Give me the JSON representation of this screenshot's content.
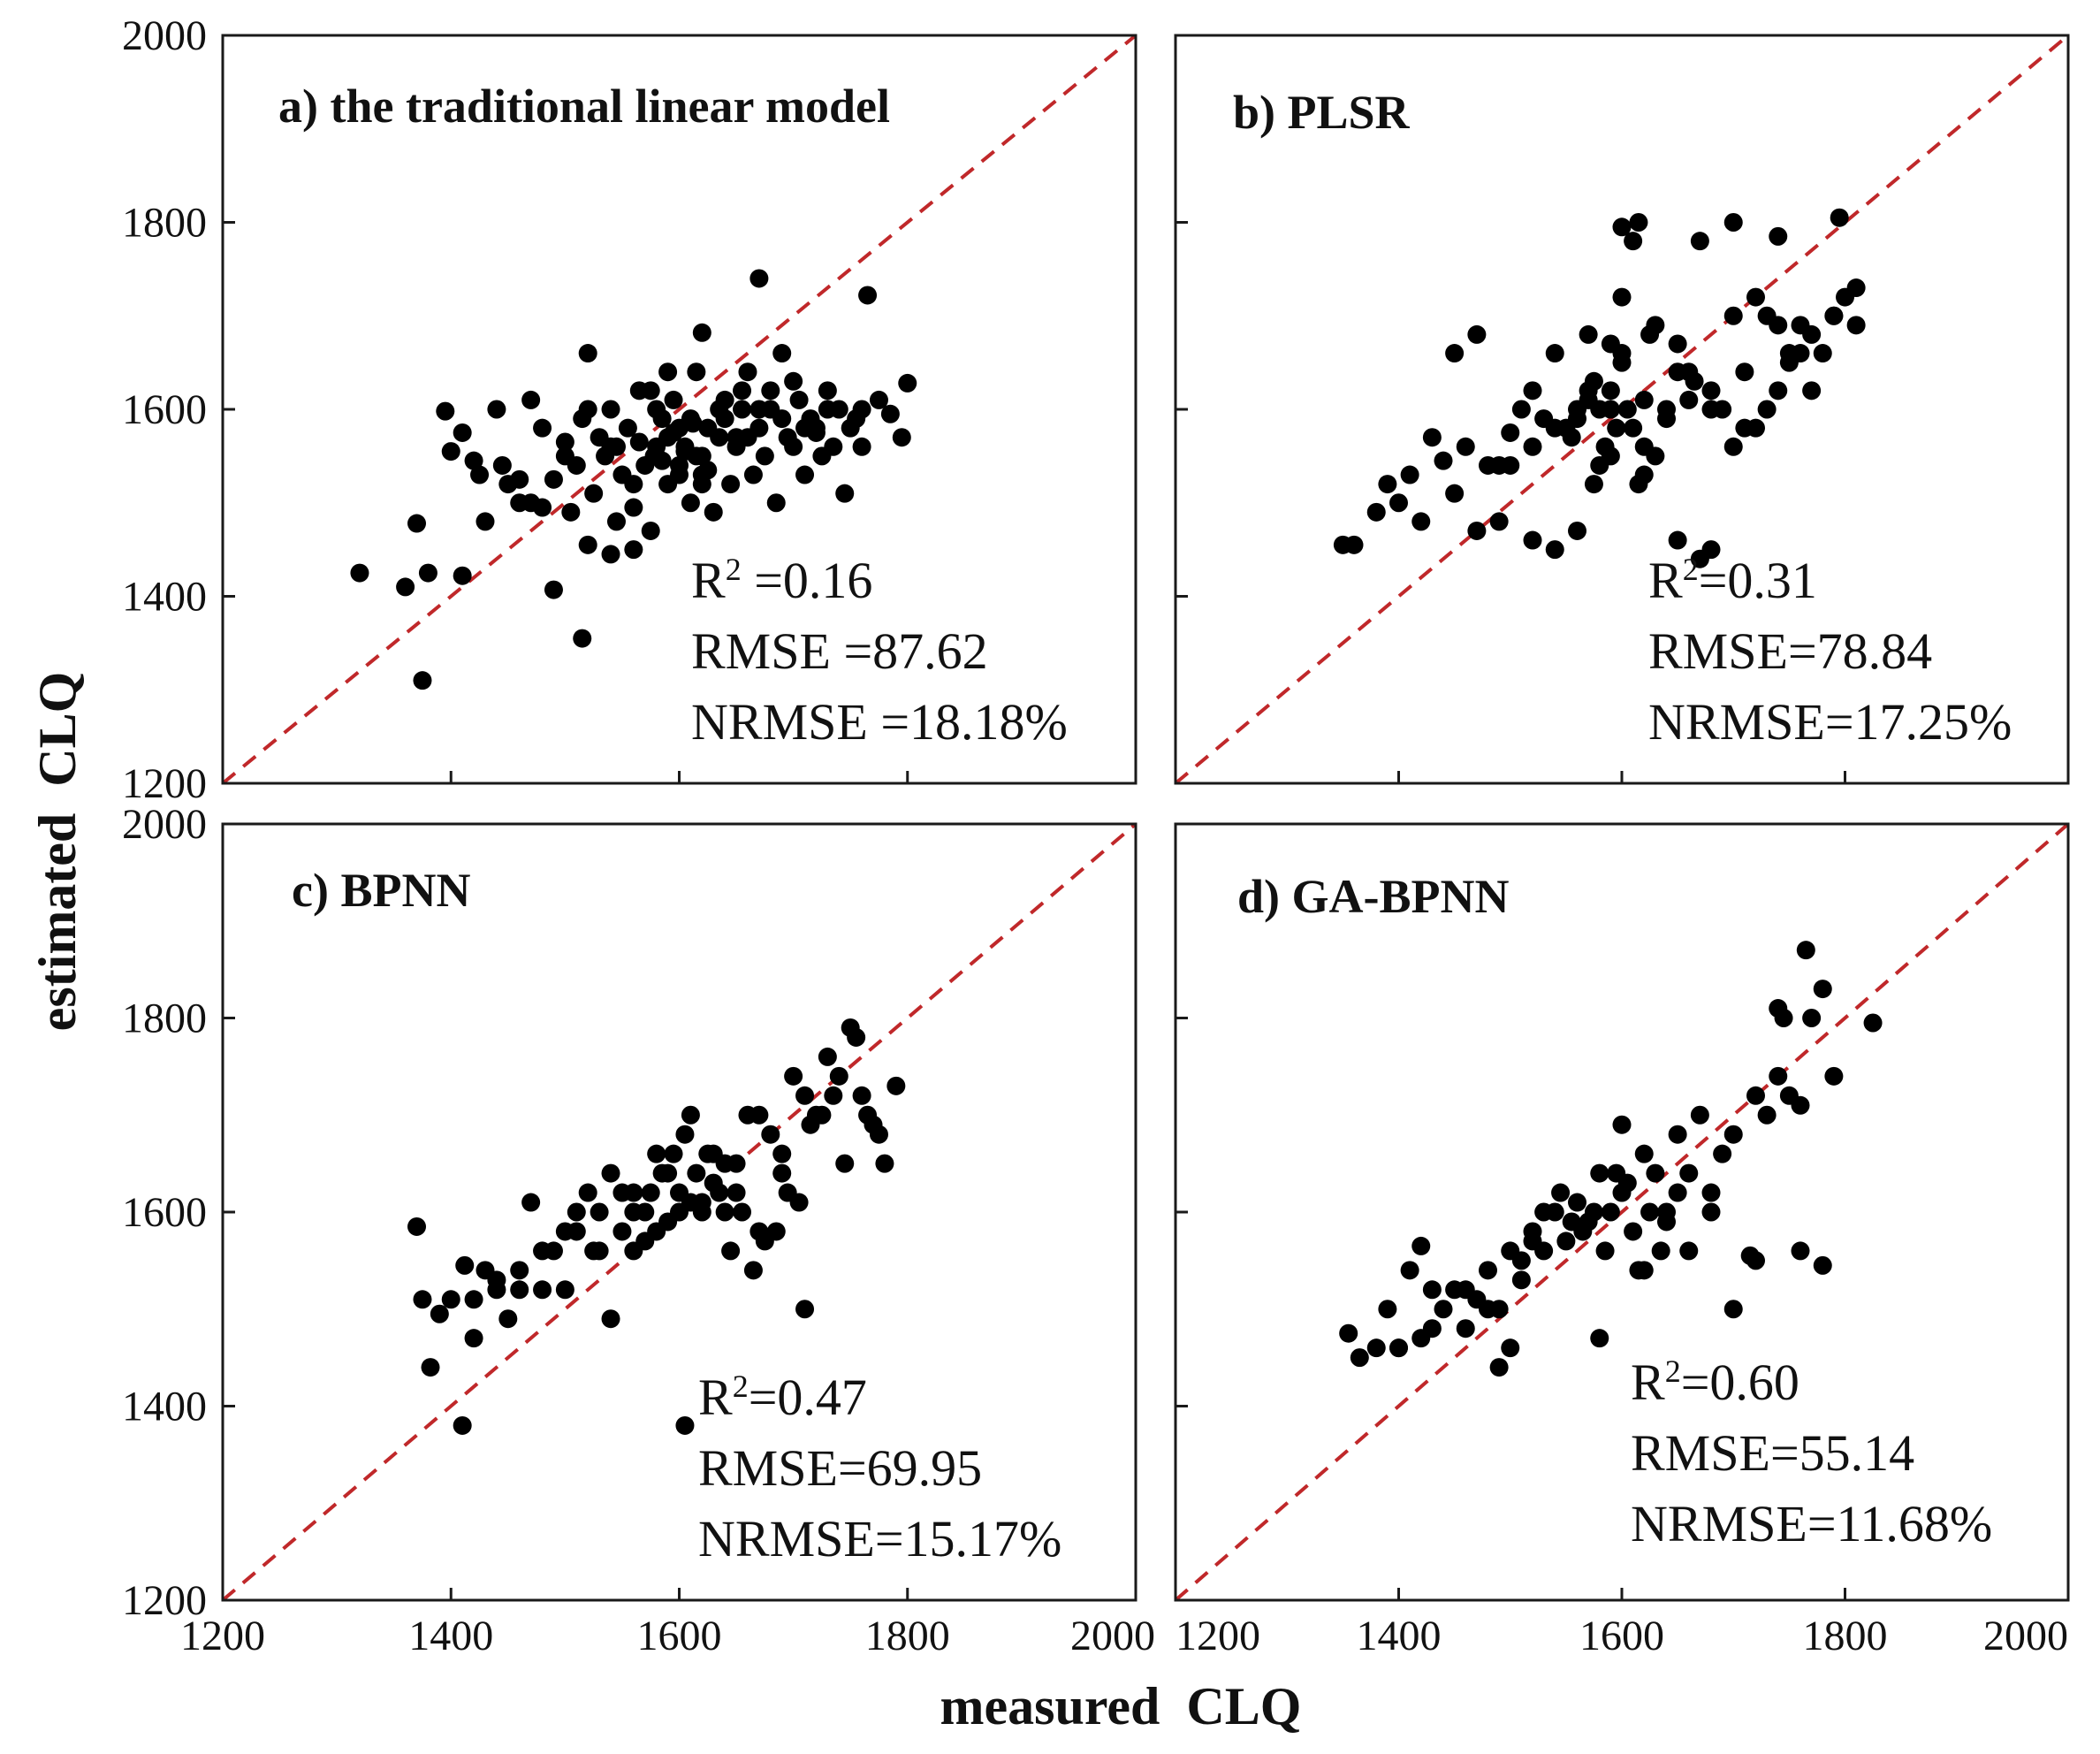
{
  "figure": {
    "xlabel": "measured  CLQ",
    "ylabel": "estimated  CLQ",
    "colors": {
      "point": "#000000",
      "reference_line": "#c0282a",
      "frame": "#1a1a1a"
    }
  },
  "chart_data": [
    {
      "type": "scatter",
      "title": "a) the traditional linear model",
      "reference_line": "1:1",
      "xlim": [
        1200,
        2000
      ],
      "ylim": [
        1200,
        2000
      ],
      "xticks": [
        1200,
        1400,
        1600,
        1800,
        2000
      ],
      "yticks": [
        1200,
        1400,
        1600,
        1800,
        2000
      ],
      "xtick_labels": [],
      "ytick_labels": [
        "1200",
        "1400",
        "1600",
        "1800",
        "2000"
      ],
      "stats": [
        "R2 =0.16",
        "RMSE =87.62",
        "NRMSE =18.18%"
      ],
      "points": {
        "x": [
          1320,
          1360,
          1370,
          1375,
          1380,
          1410,
          1490,
          1515,
          1670,
          1765,
          1800,
          1795,
          1620,
          1560,
          1540,
          1520,
          1395,
          1400,
          1410,
          1420,
          1425,
          1440,
          1450,
          1460,
          1470,
          1480,
          1490,
          1500,
          1505,
          1510,
          1515,
          1520,
          1525,
          1530,
          1535,
          1540,
          1545,
          1550,
          1555,
          1560,
          1565,
          1570,
          1575,
          1580,
          1585,
          1590,
          1595,
          1600,
          1605,
          1610,
          1615,
          1620,
          1625,
          1630,
          1635,
          1640,
          1645,
          1650,
          1655,
          1660,
          1665,
          1670,
          1675,
          1680,
          1685,
          1690,
          1695,
          1700,
          1705,
          1710,
          1715,
          1720,
          1725,
          1730,
          1735,
          1740,
          1745,
          1750,
          1755,
          1760,
          1775,
          1785,
          1430,
          1445,
          1470,
          1500,
          1520,
          1545,
          1560,
          1580,
          1600,
          1615,
          1640,
          1660,
          1690,
          1710,
          1730,
          1760,
          1575,
          1590,
          1610,
          1625,
          1650,
          1680,
          1700,
          1720,
          1540,
          1565,
          1585,
          1595,
          1605,
          1620,
          1635,
          1655,
          1670,
          1590,
          1600,
          1612,
          1578,
          1620,
          1460,
          1480
        ],
        "y": [
          1425,
          1410,
          1478,
          1310,
          1425,
          1422,
          1407,
          1355,
          1740,
          1722,
          1628,
          1570,
          1682,
          1450,
          1445,
          1455,
          1598,
          1555,
          1575,
          1545,
          1530,
          1600,
          1520,
          1500,
          1610,
          1580,
          1525,
          1565,
          1490,
          1540,
          1590,
          1660,
          1510,
          1570,
          1550,
          1600,
          1480,
          1530,
          1580,
          1495,
          1620,
          1540,
          1470,
          1560,
          1590,
          1520,
          1610,
          1530,
          1560,
          1500,
          1640,
          1550,
          1580,
          1490,
          1570,
          1610,
          1520,
          1560,
          1600,
          1640,
          1530,
          1580,
          1550,
          1620,
          1500,
          1590,
          1570,
          1560,
          1610,
          1530,
          1590,
          1580,
          1550,
          1620,
          1560,
          1600,
          1510,
          1580,
          1590,
          1600,
          1610,
          1595,
          1480,
          1540,
          1500,
          1550,
          1600,
          1560,
          1520,
          1600,
          1580,
          1550,
          1590,
          1570,
          1660,
          1580,
          1600,
          1560,
          1620,
          1640,
          1590,
          1535,
          1570,
          1600,
          1630,
          1575,
          1560,
          1565,
          1545,
          1575,
          1555,
          1530,
          1600,
          1620,
          1600,
          1570,
          1540,
          1585,
          1550,
          1520,
          1525,
          1495
        ]
      }
    },
    {
      "type": "scatter",
      "title": "b) PLSR",
      "reference_line": "1:1",
      "xlim": [
        1200,
        2000
      ],
      "ylim": [
        1200,
        2000
      ],
      "xticks": [
        1200,
        1400,
        1600,
        1800,
        2000
      ],
      "yticks": [
        1200,
        1400,
        1600,
        1800,
        2000
      ],
      "xtick_labels": [],
      "ytick_labels": [],
      "stats": [
        "R2=0.31",
        "RMSE=78.84",
        "NRMSE=17.25%"
      ],
      "points": {
        "x": [
          1350,
          1360,
          1380,
          1390,
          1400,
          1410,
          1420,
          1430,
          1440,
          1450,
          1460,
          1470,
          1480,
          1490,
          1500,
          1510,
          1520,
          1530,
          1540,
          1550,
          1560,
          1570,
          1580,
          1590,
          1600,
          1610,
          1620,
          1630,
          1640,
          1650,
          1660,
          1670,
          1680,
          1690,
          1700,
          1710,
          1720,
          1730,
          1740,
          1750,
          1760,
          1770,
          1780,
          1790,
          1800,
          1810,
          1600,
          1615,
          1610,
          1670,
          1700,
          1795,
          1740,
          1625,
          1650,
          1680,
          1450,
          1470,
          1490,
          1520,
          1540,
          1555,
          1570,
          1590,
          1580,
          1590,
          1600,
          1620,
          1640,
          1660,
          1680,
          1700,
          1720,
          1740,
          1760,
          1790,
          1810,
          1560,
          1575,
          1585,
          1595,
          1605,
          1615,
          1630,
          1650,
          1665,
          1710,
          1730,
          1750,
          1770,
          1540,
          1520,
          1500,
          1620,
          1590,
          1575,
          1560,
          1600,
          1570
        ],
        "y": [
          1455,
          1455,
          1490,
          1520,
          1500,
          1530,
          1480,
          1570,
          1545,
          1510,
          1560,
          1470,
          1540,
          1480,
          1575,
          1600,
          1460,
          1590,
          1450,
          1580,
          1470,
          1620,
          1600,
          1550,
          1650,
          1580,
          1530,
          1690,
          1600,
          1460,
          1610,
          1440,
          1450,
          1600,
          1560,
          1640,
          1580,
          1700,
          1620,
          1660,
          1690,
          1620,
          1660,
          1700,
          1720,
          1690,
          1795,
          1800,
          1780,
          1780,
          1800,
          1805,
          1785,
          1680,
          1640,
          1600,
          1660,
          1680,
          1540,
          1620,
          1580,
          1570,
          1680,
          1600,
          1540,
          1620,
          1660,
          1560,
          1590,
          1640,
          1620,
          1700,
          1720,
          1690,
          1660,
          1700,
          1730,
          1600,
          1630,
          1560,
          1580,
          1600,
          1520,
          1550,
          1670,
          1630,
          1580,
          1600,
          1650,
          1680,
          1660,
          1560,
          1540,
          1610,
          1670,
          1520,
          1590,
          1720,
          1610
        ]
      }
    },
    {
      "type": "scatter",
      "title": "c) BPNN",
      "reference_line": "1:1",
      "xlim": [
        1200,
        2000
      ],
      "ylim": [
        1200,
        2000
      ],
      "xticks": [
        1200,
        1400,
        1600,
        1800,
        2000
      ],
      "yticks": [
        1200,
        1400,
        1600,
        1800,
        2000
      ],
      "xtick_labels": [
        "1200",
        "1400",
        "1600",
        "1800",
        "2000"
      ],
      "ytick_labels": [
        "1200",
        "1400",
        "1600",
        "1800",
        "2000"
      ],
      "stats": [
        "R2=0.47",
        "RMSE=69.95",
        "NRMSE=15.17%"
      ],
      "points": {
        "x": [
          1370,
          1375,
          1382,
          1390,
          1400,
          1410,
          1412,
          1420,
          1430,
          1440,
          1450,
          1460,
          1470,
          1480,
          1490,
          1500,
          1510,
          1520,
          1530,
          1540,
          1550,
          1560,
          1570,
          1580,
          1590,
          1600,
          1610,
          1620,
          1630,
          1640,
          1650,
          1660,
          1670,
          1680,
          1690,
          1700,
          1710,
          1720,
          1730,
          1740,
          1750,
          1760,
          1770,
          1780,
          1790,
          1605,
          1710,
          1540,
          1525,
          1560,
          1575,
          1585,
          1595,
          1605,
          1615,
          1625,
          1635,
          1645,
          1655,
          1665,
          1675,
          1685,
          1695,
          1705,
          1715,
          1725,
          1735,
          1745,
          1755,
          1765,
          1775,
          1500,
          1510,
          1530,
          1550,
          1570,
          1590,
          1610,
          1630,
          1650,
          1670,
          1690,
          1460,
          1480,
          1440,
          1420,
          1600,
          1580,
          1560,
          1620,
          1640
        ],
        "y": [
          1585,
          1510,
          1440,
          1495,
          1510,
          1380,
          1545,
          1470,
          1540,
          1520,
          1490,
          1540,
          1610,
          1520,
          1560,
          1580,
          1600,
          1620,
          1560,
          1640,
          1580,
          1620,
          1600,
          1660,
          1640,
          1620,
          1700,
          1600,
          1660,
          1650,
          1620,
          1700,
          1580,
          1680,
          1660,
          1740,
          1720,
          1700,
          1760,
          1740,
          1790,
          1720,
          1690,
          1650,
          1730,
          1380,
          1500,
          1490,
          1560,
          1600,
          1620,
          1640,
          1660,
          1680,
          1640,
          1660,
          1620,
          1560,
          1600,
          1540,
          1570,
          1580,
          1620,
          1610,
          1690,
          1700,
          1720,
          1650,
          1780,
          1700,
          1680,
          1520,
          1580,
          1600,
          1620,
          1570,
          1590,
          1610,
          1630,
          1650,
          1700,
          1640,
          1520,
          1560,
          1530,
          1510,
          1600,
          1580,
          1560,
          1610,
          1600
        ]
      }
    },
    {
      "type": "scatter",
      "title": "d) GA-BPNN",
      "reference_line": "1:1",
      "xlim": [
        1200,
        2000
      ],
      "ylim": [
        1200,
        2000
      ],
      "xticks": [
        1200,
        1400,
        1600,
        1800,
        2000
      ],
      "yticks": [
        1200,
        1400,
        1600,
        1800,
        2000
      ],
      "xtick_labels": [
        "1200",
        "1400",
        "1600",
        "1800",
        "2000"
      ],
      "ytick_labels": [],
      "stats": [
        "R2=0.60",
        "RMSE=55.14",
        "NRMSE=11.68%"
      ],
      "points": {
        "x": [
          1355,
          1365,
          1380,
          1390,
          1400,
          1410,
          1420,
          1430,
          1440,
          1450,
          1460,
          1470,
          1480,
          1490,
          1500,
          1510,
          1520,
          1530,
          1540,
          1550,
          1560,
          1570,
          1580,
          1590,
          1600,
          1610,
          1620,
          1630,
          1640,
          1650,
          1660,
          1670,
          1680,
          1690,
          1700,
          1720,
          1730,
          1740,
          1750,
          1760,
          1770,
          1780,
          1790,
          1825,
          1765,
          1780,
          1720,
          1760,
          1745,
          1580,
          1500,
          1490,
          1400,
          1420,
          1430,
          1600,
          1640,
          1660,
          1680,
          1530,
          1545,
          1555,
          1565,
          1575,
          1585,
          1595,
          1605,
          1615,
          1625,
          1635,
          1510,
          1520,
          1480,
          1460,
          1620,
          1650,
          1700,
          1715,
          1740
        ],
        "y": [
          1475,
          1450,
          1460,
          1500,
          1460,
          1540,
          1470,
          1480,
          1500,
          1520,
          1480,
          1510,
          1540,
          1500,
          1560,
          1530,
          1580,
          1560,
          1600,
          1570,
          1610,
          1590,
          1640,
          1600,
          1620,
          1580,
          1660,
          1640,
          1600,
          1680,
          1640,
          1700,
          1620,
          1660,
          1680,
          1720,
          1700,
          1740,
          1720,
          1710,
          1800,
          1830,
          1740,
          1795,
          1870,
          1545,
          1550,
          1560,
          1800,
          1470,
          1460,
          1440,
          1460,
          1565,
          1520,
          1690,
          1590,
          1560,
          1600,
          1600,
          1620,
          1590,
          1580,
          1600,
          1560,
          1640,
          1630,
          1540,
          1600,
          1560,
          1550,
          1570,
          1500,
          1520,
          1540,
          1620,
          1500,
          1555,
          1810
        ]
      }
    }
  ]
}
